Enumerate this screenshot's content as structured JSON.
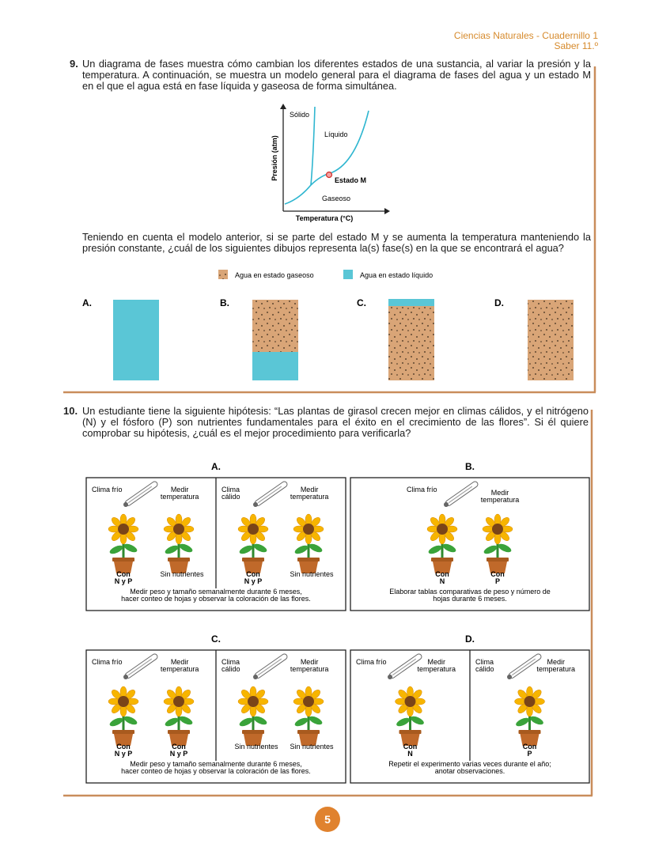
{
  "header": {
    "subject": "Ciencias Naturales - Cuadernillo 1",
    "level": "Saber 11.º"
  },
  "question_9": {
    "number": "9.",
    "intro": "Un diagrama de fases muestra cómo cambian los diferentes estados de una sustancia, al variar la presión y la temperatura. A continuación, se muestra un modelo general para el diagrama de fases del agua y un estado M en el que el agua está en fase líquida y gaseosa de forma simultánea.",
    "diagram": {
      "y_axis": "Presión (atm)",
      "x_axis": "Temperatura (°C)",
      "solid": "Sólido",
      "liquid": "Líquido",
      "gas": "Gaseoso",
      "point": "Estado M"
    },
    "question": "Teniendo en cuenta el modelo anterior, si se parte del estado M y se aumenta la temperatura manteniendo la presión constante, ¿cuál de los siguientes dibujos representa la(s) fase(s) en la que se encontrará el agua?",
    "legend": {
      "gas": "Agua en estado gaseoso",
      "liquid": "Agua en estado líquido"
    },
    "options": [
      "A.",
      "B.",
      "C.",
      "D."
    ]
  },
  "question_10": {
    "number": "10.",
    "text": "Un estudiante tiene la siguiente hipótesis: “Las plantas de girasol crecen mejor en climas cálidos, y el nitrógeno (N) y el fósforo (P) son nutrientes fundamentales para el éxito en el crecimiento de las flores”. Si él quiere comprobar su hipótesis, ¿cuál es el mejor procedimiento para verificarla?",
    "options": [
      {
        "letter": "A.",
        "panels": [
          {
            "climate": [
              "Clima frío"
            ],
            "measure": [
              "Medir",
              "temperatura"
            ],
            "plants": [
              [
                "Con",
                "N y P"
              ],
              [
                "Sin nutrientes"
              ]
            ]
          },
          {
            "climate": [
              "Clima",
              "cálido"
            ],
            "measure": [
              "Medir",
              "temperatura"
            ],
            "plants": [
              [
                "Con",
                "N y P"
              ],
              [
                "Sin nutrientes"
              ]
            ]
          }
        ],
        "caption": [
          "Medir peso y tamaño semanalmente durante 6 meses,",
          "hacer conteo de hojas y observar la coloración de las flores."
        ]
      },
      {
        "letter": "B.",
        "panels": [
          {
            "climate": [
              "Clima frío"
            ],
            "measure": [
              "Medir",
              "temperatura"
            ],
            "plants": [
              [
                "Con",
                "N"
              ],
              [
                "Con",
                "P"
              ]
            ]
          }
        ],
        "caption": [
          "Elaborar tablas comparativas de peso y número de",
          "hojas durante 6 meses."
        ]
      },
      {
        "letter": "C.",
        "panels": [
          {
            "climate": [
              "Clima frío"
            ],
            "measure": [
              "Medir",
              "temperatura"
            ],
            "plants": [
              [
                "Con",
                "N y P"
              ],
              [
                "Con",
                "N y P"
              ]
            ]
          },
          {
            "climate": [
              "Clima",
              "cálido"
            ],
            "measure": [
              "Medir",
              "temperatura"
            ],
            "plants": [
              [
                "Sin nutrientes"
              ],
              [
                "Sin nutrientes"
              ]
            ]
          }
        ],
        "caption": [
          "Medir peso y tamaño semanalmente durante 6 meses,",
          "hacer conteo de hojas y observar la coloración de las flores."
        ]
      },
      {
        "letter": "D.",
        "panels": [
          {
            "climate": [
              "Clima frío"
            ],
            "measure": [
              "Medir",
              "temperatura"
            ],
            "plants": [
              [
                "Con",
                "N"
              ]
            ]
          },
          {
            "climate": [
              "Clima",
              "cálido"
            ],
            "measure": [
              "Medir",
              "temperatura"
            ],
            "plants": [
              [
                "Con",
                "P"
              ]
            ]
          }
        ],
        "caption": [
          "Repetir el experimento varias veces durante el año;",
          "anotar observaciones."
        ]
      }
    ]
  },
  "page_number": "5"
}
